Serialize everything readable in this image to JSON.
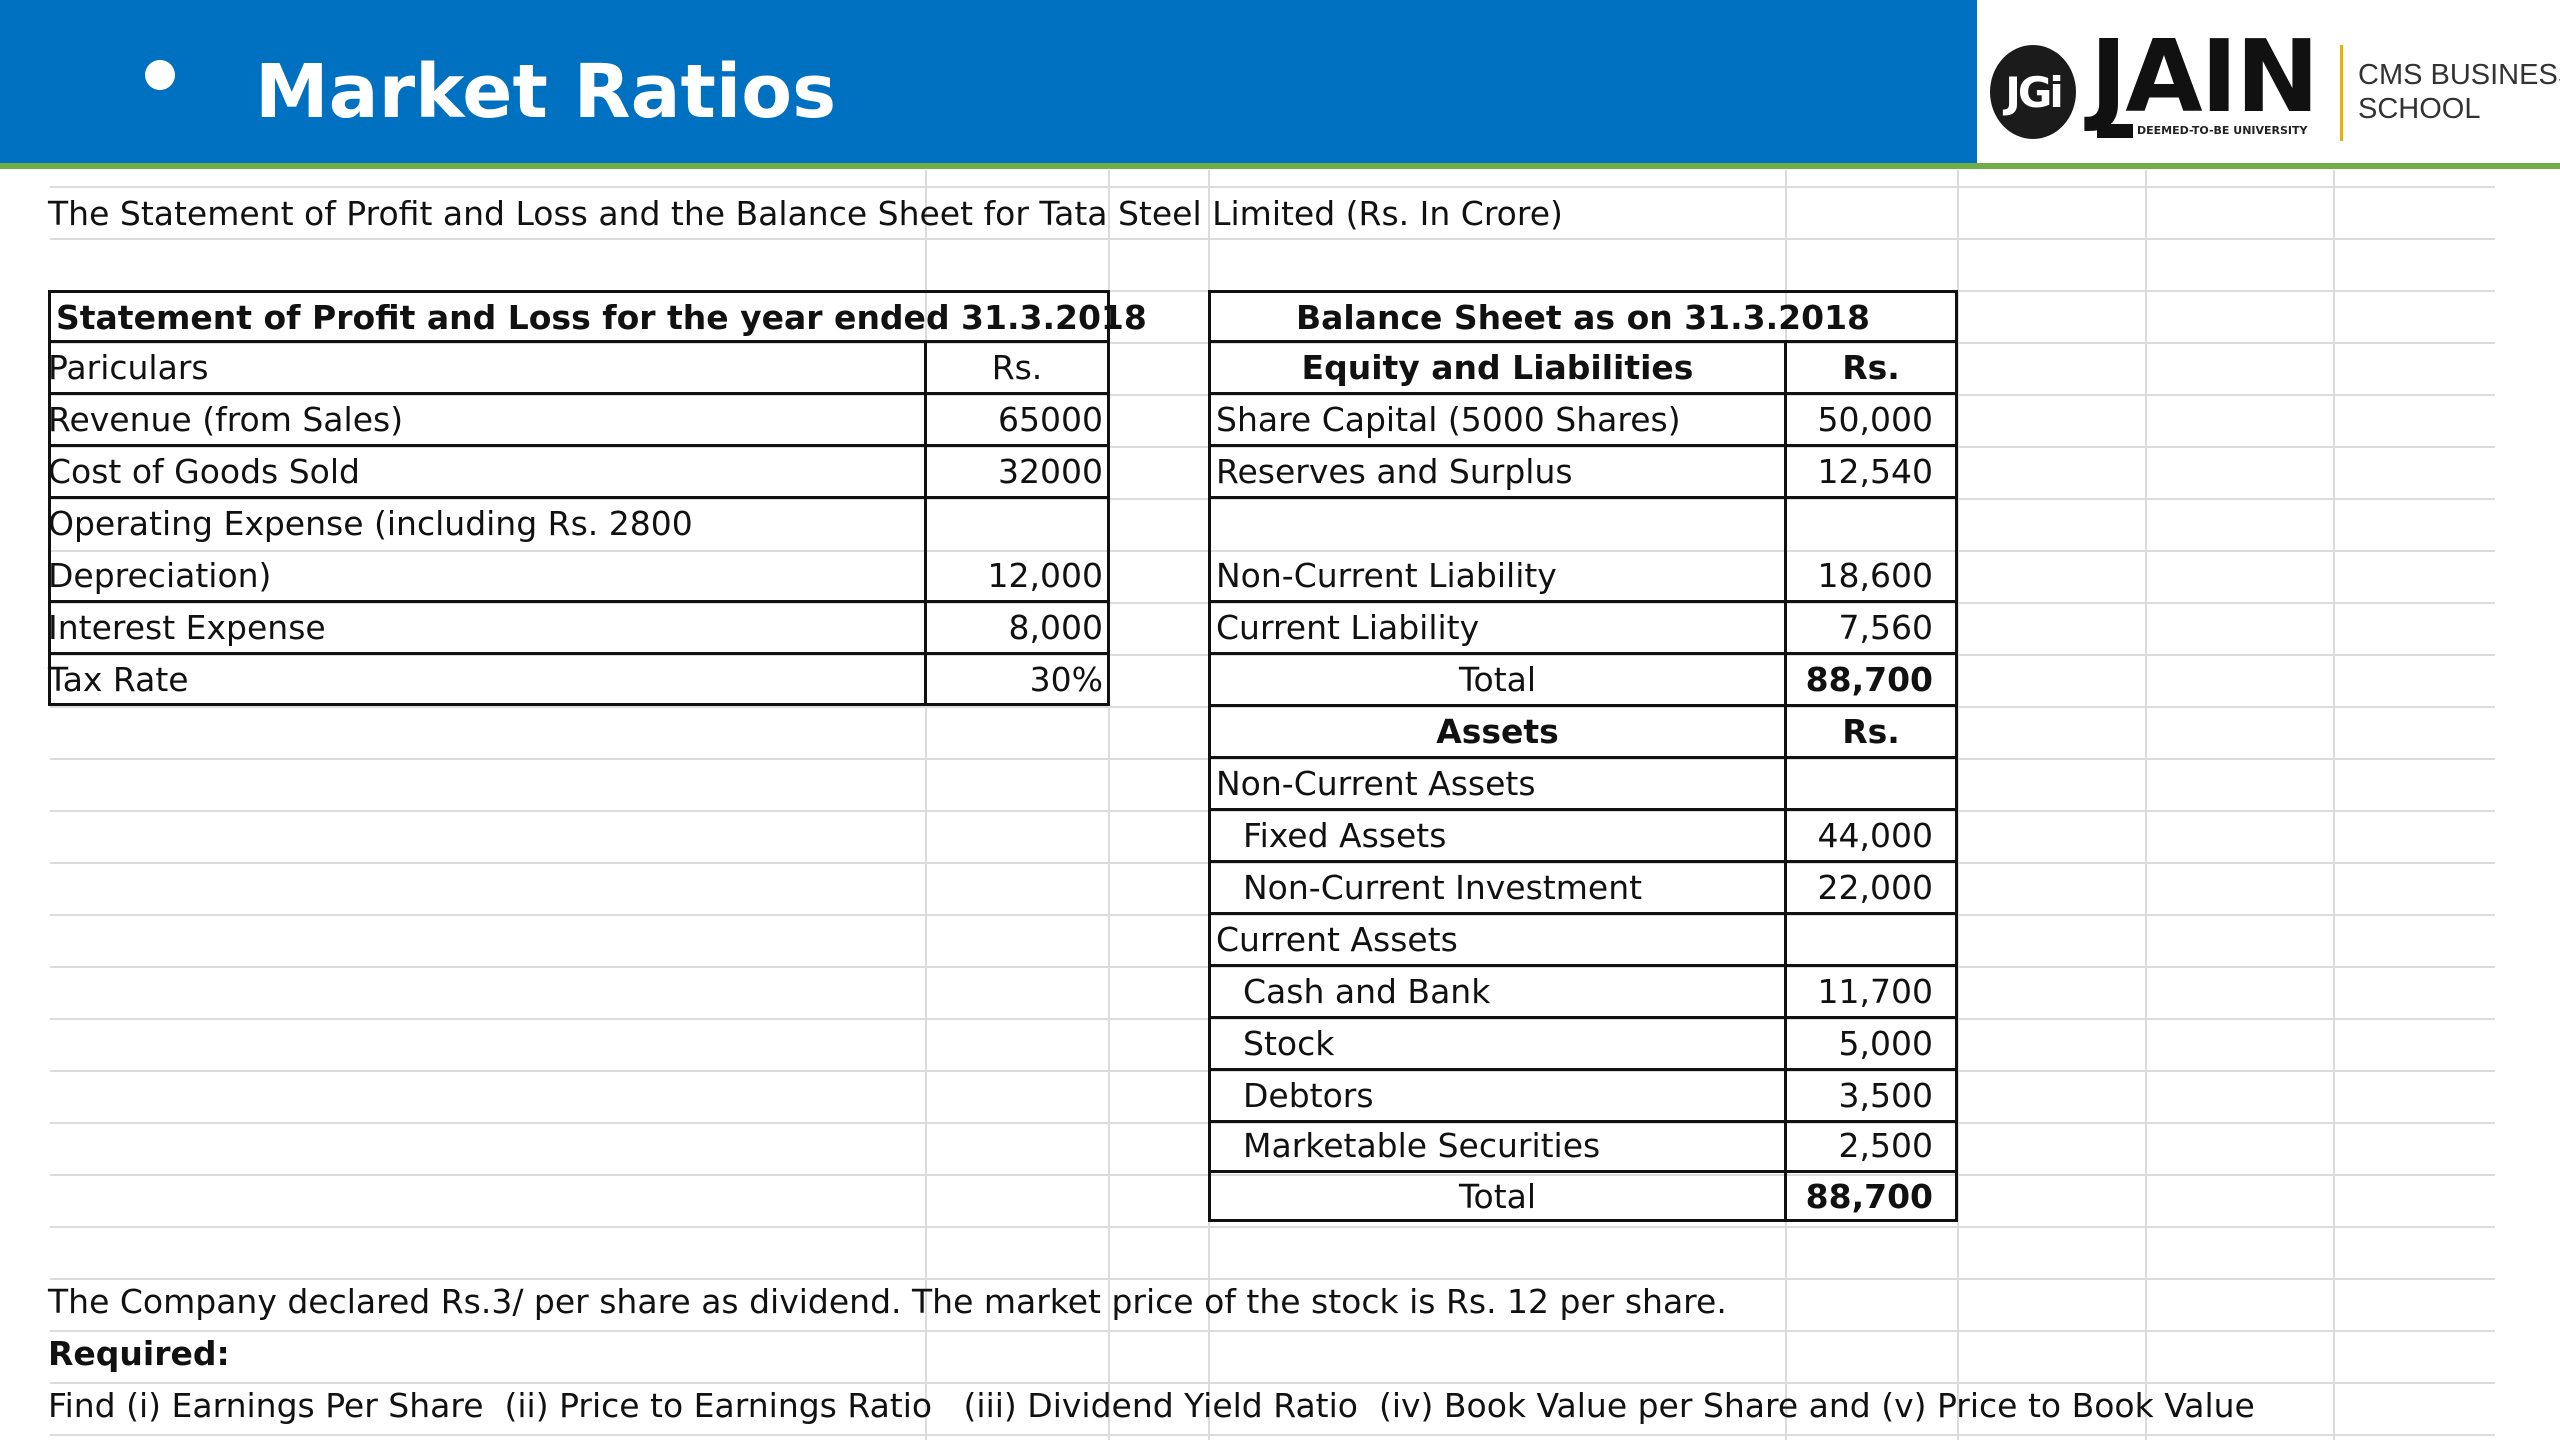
{
  "header": {
    "title": "Market Ratios",
    "logo": {
      "badge": "JGi",
      "name": "JAIN",
      "tagline": "DEEMED-TO-BE UNIVERSITY",
      "school_line1": "CMS BUSINESS",
      "school_line2": "SCHOOL"
    },
    "colors": {
      "bar": "#0070c0",
      "accent_line": "#70ad47"
    }
  },
  "intro": "The Statement of Profit and Loss and the Balance Sheet for Tata Steel Limited (Rs. In Crore)",
  "pl_table": {
    "title": "Statement of Profit and Loss for the year ended 31.3.2018",
    "col_particulars": "Pariculars",
    "col_rs": "Rs.",
    "rows": [
      {
        "label": "Revenue (from Sales)",
        "value": "65000"
      },
      {
        "label": "Cost of Goods Sold",
        "value": "32000"
      },
      {
        "label_line1": "Operating Expense (including Rs. 2800",
        "label_line2": "Depreciation)",
        "value": "12,000"
      },
      {
        "label": "Interest Expense",
        "value": "8,000"
      },
      {
        "label": "Tax Rate",
        "value": "30%"
      }
    ]
  },
  "bs_table": {
    "title": "Balance Sheet as on 31.3.2018",
    "equity_header": "Equity and Liabilities",
    "col_rs": "Rs.",
    "equity_rows": [
      {
        "label": "Share Capital (5000 Shares)",
        "value": "50,000"
      },
      {
        "label": "Reserves and Surplus",
        "value": "12,540"
      },
      {
        "label": "Non-Current Liability",
        "value": "18,600"
      },
      {
        "label": "Current Liability",
        "value": "7,560"
      }
    ],
    "equity_total_label": "Total",
    "equity_total": "88,700",
    "assets_header": "Assets",
    "assets_col_rs": "Rs.",
    "noncurrent_header": "Non-Current Assets",
    "noncurrent_rows": [
      {
        "label": "Fixed Assets",
        "value": "44,000"
      },
      {
        "label": "Non-Current Investment",
        "value": "22,000"
      }
    ],
    "current_header": "Current Assets",
    "current_rows": [
      {
        "label": "Cash and Bank",
        "value": "11,700"
      },
      {
        "label": "Stock",
        "value": "5,000"
      },
      {
        "label": "Debtors",
        "value": "3,500"
      },
      {
        "label": "Marketable Securities",
        "value": "2,500"
      }
    ],
    "assets_total_label": "Total",
    "assets_total": "88,700"
  },
  "footer": {
    "dividend_note": "The Company declared Rs.3/ per share as dividend. The market price of the stock is Rs. 12 per share.",
    "required_label": "Required:",
    "task": "Find (i) Earnings Per Share  (ii) Price to Earnings Ratio   (iii) Dividend Yield Ratio  (iv) Book Value per Share and (v) Price to Book Value"
  }
}
